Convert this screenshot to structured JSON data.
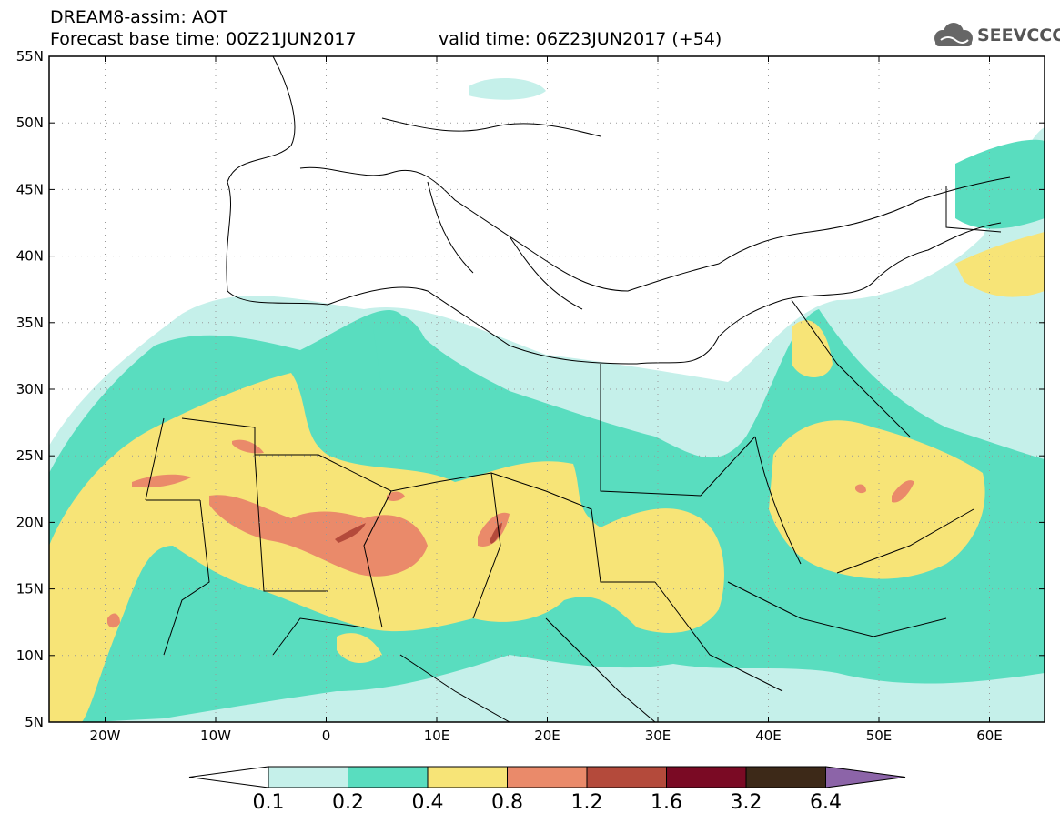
{
  "title": {
    "line1": "DREAM8-assim: AOT",
    "line2": "Forecast base time: 00Z21JUN2017",
    "valid": "valid time: 06Z23JUN2017 (+54)"
  },
  "logo": {
    "text": "SEEVCCC",
    "icon": "cloud-icon"
  },
  "axes": {
    "lat_labels": [
      "55N",
      "50N",
      "45N",
      "40N",
      "35N",
      "30N",
      "25N",
      "20N",
      "15N",
      "10N",
      "5N"
    ],
    "lon_labels": [
      "20W",
      "10W",
      "0",
      "10E",
      "20E",
      "30E",
      "40E",
      "50E",
      "60E"
    ]
  },
  "colorbar": {
    "labels": [
      "0.1",
      "0.2",
      "0.4",
      "0.8",
      "1.2",
      "1.6",
      "3.2",
      "6.4"
    ],
    "colors": [
      "#ffffff",
      "#c5f0ea",
      "#59ddbf",
      "#f7e477",
      "#ea8a6a",
      "#b44a3b",
      "#7a0a24",
      "#3d2918",
      "#8c64a8"
    ]
  },
  "colors": {
    "lightcyan": "#c5f0ea",
    "green": "#59ddbf",
    "yellow": "#f7e477",
    "salmon": "#ea8a6a",
    "brown": "#b44a3b"
  }
}
